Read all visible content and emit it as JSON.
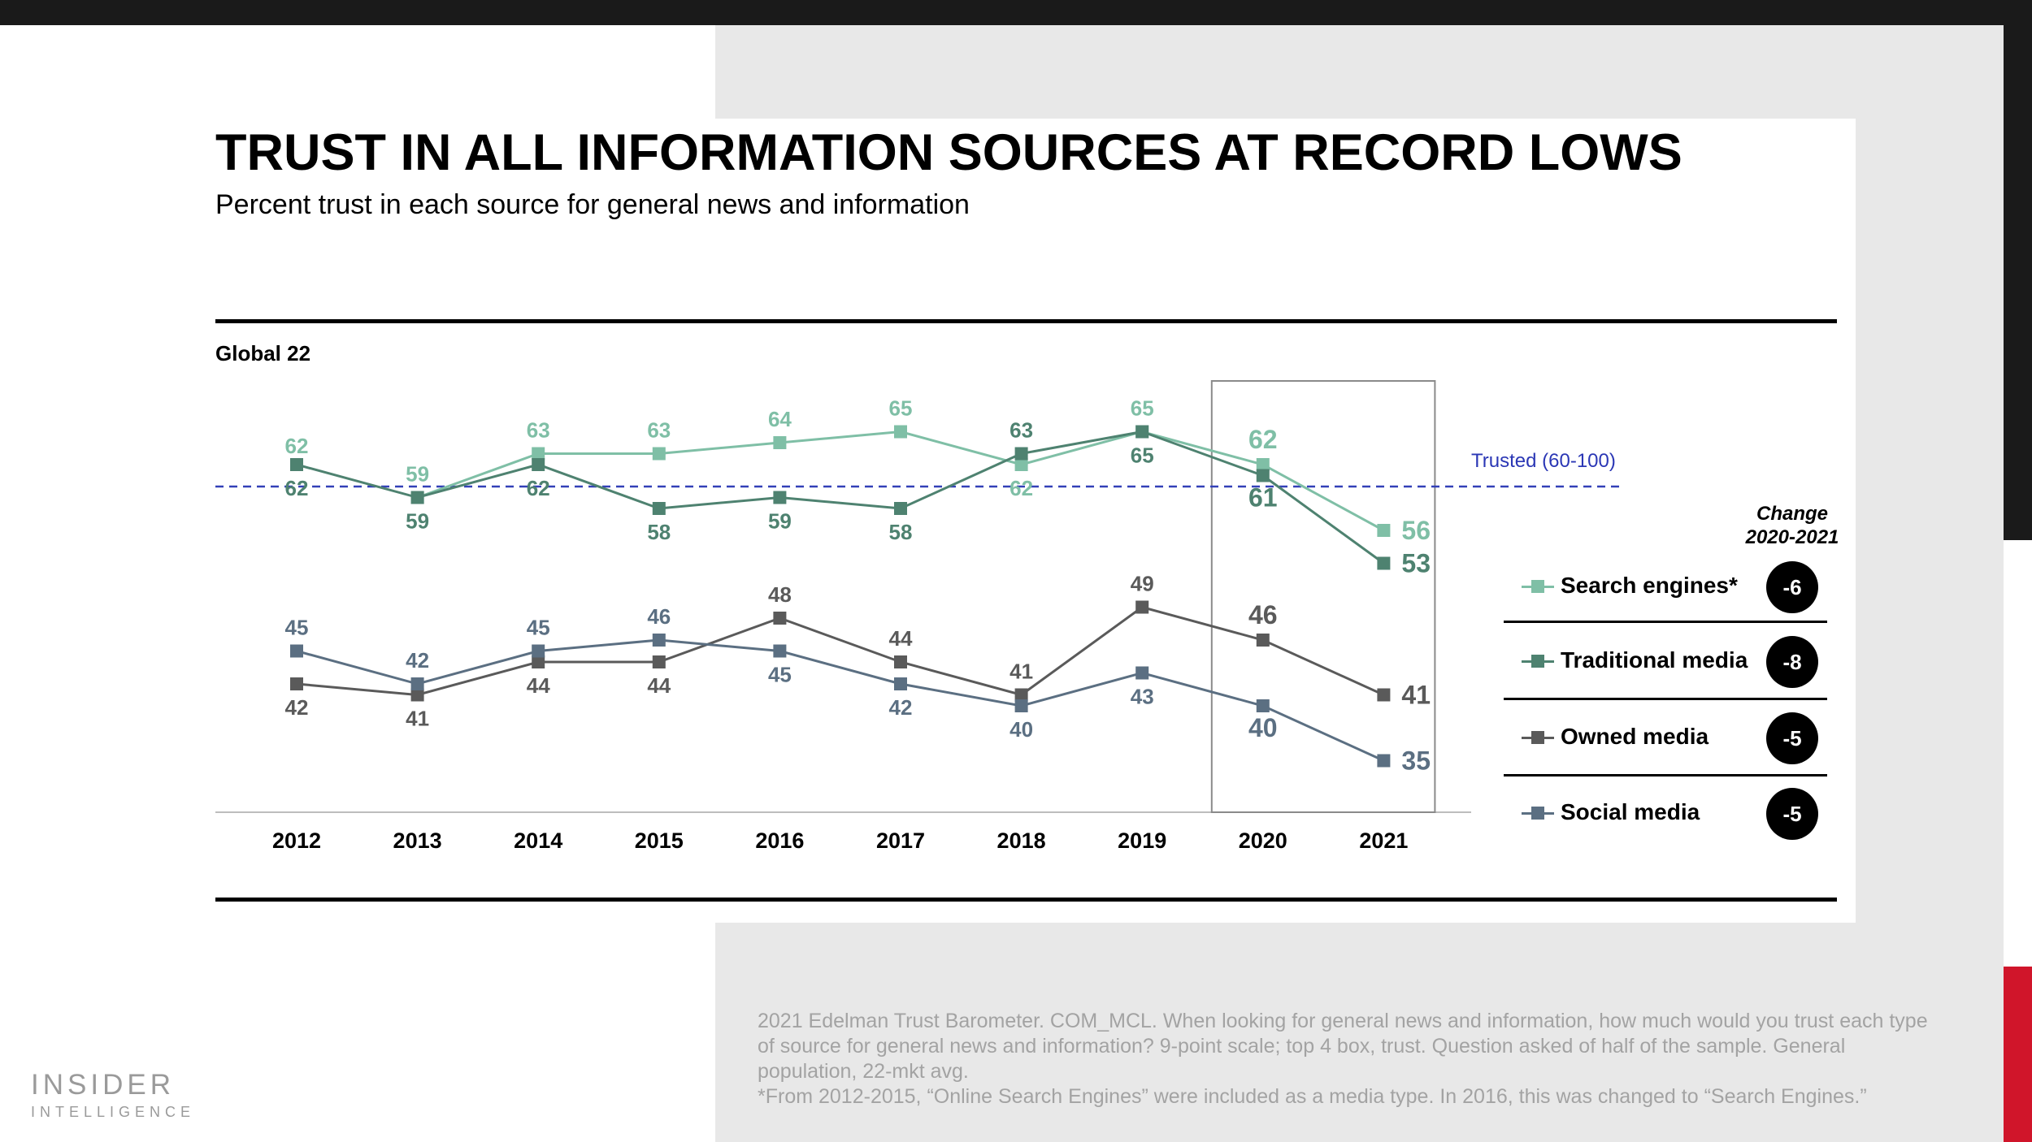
{
  "title": "TRUST IN ALL INFORMATION SOURCES AT RECORD LOWS",
  "subtitle": "Percent trust in each source for general news and information",
  "panel_label": "Global 22",
  "chart_data": {
    "type": "line",
    "categories": [
      "2012",
      "2013",
      "2014",
      "2015",
      "2016",
      "2017",
      "2018",
      "2019",
      "2020",
      "2021"
    ],
    "ylim": [
      30,
      70
    ],
    "reference_line": {
      "value": 60,
      "label": "Trusted (60-100)"
    },
    "highlight_range": [
      "2020",
      "2021"
    ],
    "series": [
      {
        "name": "Search engines*",
        "color": "#7fbfa6",
        "values": [
          null,
          59,
          63,
          63,
          64,
          65,
          62,
          65,
          62,
          56
        ],
        "label_pos": [
          "",
          "above",
          "above",
          "above",
          "above",
          "above",
          "below",
          "above",
          "above",
          "right"
        ]
      },
      {
        "name": "Traditional media",
        "color": "#4e8270",
        "values": [
          62,
          59,
          62,
          58,
          59,
          58,
          63,
          65,
          61,
          53
        ],
        "label_pos": [
          "below",
          "below",
          "below",
          "below",
          "below",
          "below",
          "above",
          "below",
          "below",
          "right"
        ],
        "top_label": "62"
      },
      {
        "name": "Owned media",
        "color": "#5a5a5a",
        "values": [
          42,
          41,
          44,
          44,
          48,
          44,
          41,
          49,
          46,
          41
        ],
        "label_pos": [
          "below",
          "below",
          "below",
          "below",
          "above",
          "above",
          "above",
          "above",
          "above",
          "right"
        ]
      },
      {
        "name": "Social media",
        "color": "#5b6f82",
        "values": [
          45,
          42,
          45,
          46,
          45,
          42,
          40,
          43,
          40,
          35
        ],
        "label_pos": [
          "above",
          "above",
          "above",
          "above",
          "below",
          "below",
          "below",
          "below",
          "below",
          "right"
        ]
      }
    ]
  },
  "legend": {
    "change_header_line1": "Change",
    "change_header_line2": "2020-2021",
    "items": [
      {
        "label": "Search engines*",
        "change": "-6",
        "color": "#7fbfa6"
      },
      {
        "label": "Traditional media",
        "change": "-8",
        "color": "#4e8270"
      },
      {
        "label": "Owned media",
        "change": "-5",
        "color": "#5a5a5a"
      },
      {
        "label": "Social media",
        "change": "-5",
        "color": "#5b6f82"
      }
    ]
  },
  "footnote": {
    "line1": "2021 Edelman Trust Barometer. COM_MCL. When looking for general news and information, how much would you trust each type of source for general news and information? 9-point scale; top 4 box, trust. Question asked of half of the sample. General population, 22-mkt avg.",
    "line2": "*From 2012-2015, “Online Search Engines” were included as a media type. In 2016, this was changed to “Search Engines.”"
  },
  "logo": {
    "main": "INSIDER",
    "sub": "INTELLIGENCE"
  }
}
